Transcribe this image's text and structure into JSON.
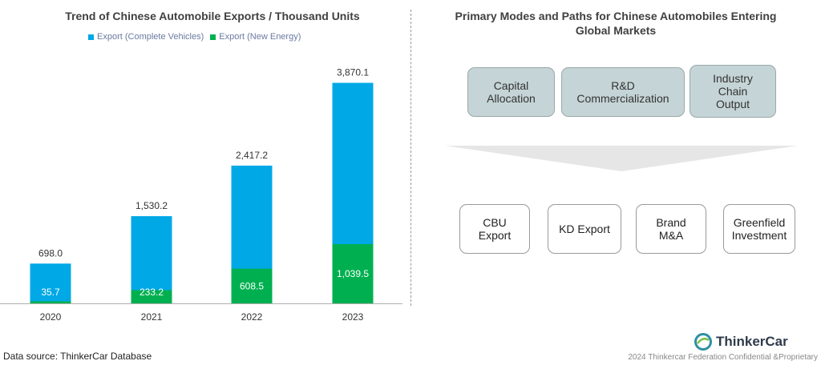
{
  "chart_data": {
    "type": "bar",
    "title": "Trend of Chinese Automobile Exports / Thousand Units",
    "categories": [
      "2020",
      "2021",
      "2022",
      "2023"
    ],
    "series": [
      {
        "name": "Export (Complete Vehicles)",
        "values": [
          698.0,
          1530.2,
          2417.2,
          3870.1
        ],
        "labels": [
          "698.0",
          "1,530.2",
          "2,417.2",
          "3,870.1"
        ],
        "color": "#00a8e6"
      },
      {
        "name": "Export (New Energy)",
        "values": [
          35.7,
          233.2,
          608.5,
          1039.5
        ],
        "labels": [
          "35.7",
          "233.2",
          "608.5",
          "1,039.5"
        ],
        "color": "#00b050"
      }
    ],
    "ylim": [
      0,
      4200
    ],
    "grid": false,
    "legend_position": "top"
  },
  "source": "Data source: ThinkerCar Database",
  "diagram": {
    "title_line1": "Primary Modes and Paths for Chinese Automobiles Entering",
    "title_line2": "Global Markets",
    "top_boxes": [
      {
        "line1": "Capital",
        "line2": "Allocation",
        "line3": ""
      },
      {
        "line1": "R&D",
        "line2": "Commercialization",
        "line3": ""
      },
      {
        "line1": "Industry",
        "line2": "Chain",
        "line3": "Output"
      }
    ],
    "bottom_boxes": [
      {
        "line1": "CBU",
        "line2": "Export"
      },
      {
        "line1": "KD Export",
        "line2": ""
      },
      {
        "line1": "Brand",
        "line2": "M&A"
      },
      {
        "line1": "Greenfield",
        "line2": "Investment"
      }
    ]
  },
  "logo": {
    "text": "ThinkerCar"
  },
  "footer": "2024 Thinkercar Federation Confidential &Proprietary",
  "colors": {
    "accent_blue": "#00a8e6",
    "accent_green": "#00b050",
    "box_fill": "#c5d4d6",
    "funnel_fill": "#e6e6e6"
  }
}
